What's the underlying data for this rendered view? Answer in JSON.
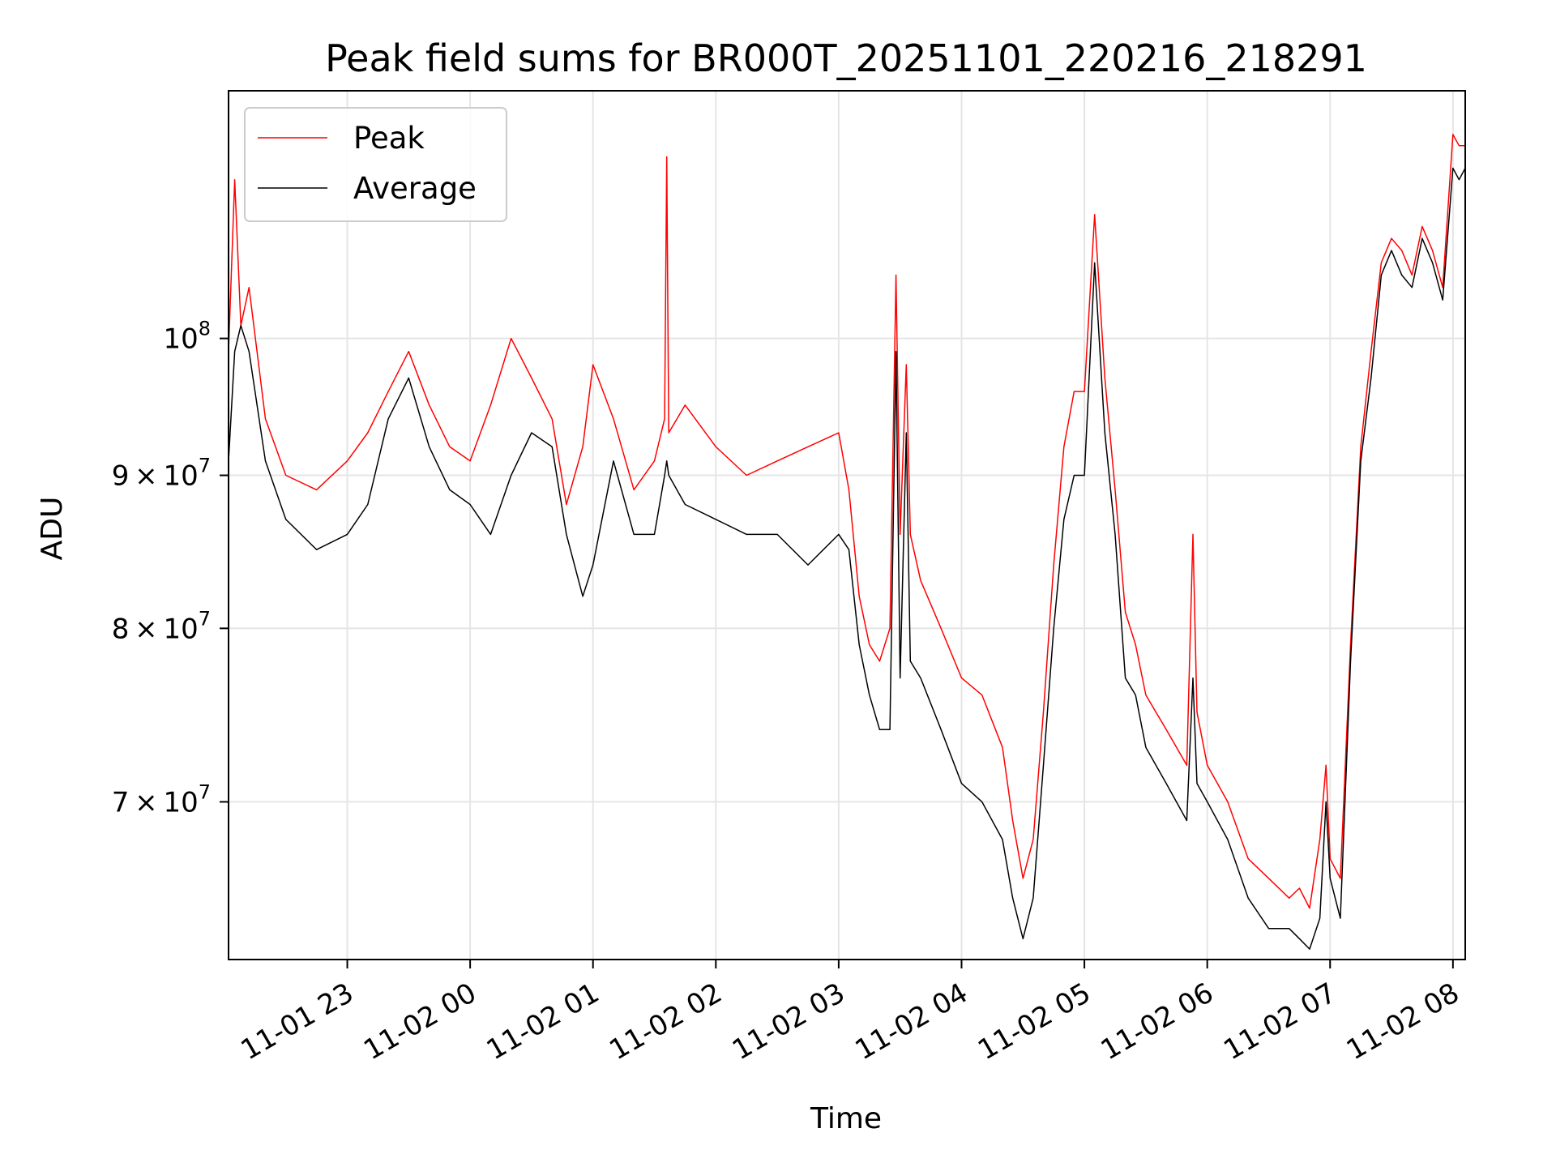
{
  "chart_data": {
    "type": "line",
    "title": "Peak field sums for BR000T_20251101_220216_218291",
    "xlabel": "Time",
    "ylabel": "ADU",
    "y_scale": "log",
    "grid": true,
    "legend_position": "top-left",
    "xlim": [
      "2025-11-01 22:02",
      "2025-11-02 08:06"
    ],
    "ylim": [
      62000000,
      121000000
    ],
    "x_ticks": [
      "11-01 23",
      "11-02 00",
      "11-02 01",
      "11-02 02",
      "11-02 03",
      "11-02 04",
      "11-02 05",
      "11-02 06",
      "11-02 07",
      "11-02 08"
    ],
    "x_tick_values": [
      "2025-11-01 23:00",
      "2025-11-02 00:00",
      "2025-11-02 01:00",
      "2025-11-02 02:00",
      "2025-11-02 03:00",
      "2025-11-02 04:00",
      "2025-11-02 05:00",
      "2025-11-02 06:00",
      "2025-11-02 07:00",
      "2025-11-02 08:00"
    ],
    "y_ticks": [
      {
        "value": 70000000,
        "mantissa": "7",
        "base": "10",
        "exp": "7",
        "full": "7 × 10^7"
      },
      {
        "value": 80000000,
        "mantissa": "8",
        "base": "10",
        "exp": "7",
        "full": "8 × 10^7"
      },
      {
        "value": 90000000,
        "mantissa": "9",
        "base": "10",
        "exp": "7",
        "full": "9 × 10^7"
      },
      {
        "value": 100000000,
        "mantissa": "",
        "base": "10",
        "exp": "8",
        "full": "10^8"
      }
    ],
    "series": [
      {
        "name": "Peak",
        "color": "#ff0000",
        "x": [
          "2025-11-01 22:02",
          "2025-11-01 22:05",
          "2025-11-01 22:08",
          "2025-11-01 22:12",
          "2025-11-01 22:20",
          "2025-11-01 22:30",
          "2025-11-01 22:45",
          "2025-11-01 23:00",
          "2025-11-01 23:10",
          "2025-11-01 23:20",
          "2025-11-01 23:30",
          "2025-11-01 23:40",
          "2025-11-01 23:50",
          "2025-11-02 00:00",
          "2025-11-02 00:10",
          "2025-11-02 00:20",
          "2025-11-02 00:30",
          "2025-11-02 00:40",
          "2025-11-02 00:47",
          "2025-11-02 00:55",
          "2025-11-02 01:00",
          "2025-11-02 01:10",
          "2025-11-02 01:20",
          "2025-11-02 01:30",
          "2025-11-02 01:35",
          "2025-11-02 01:36",
          "2025-11-02 01:37",
          "2025-11-02 01:45",
          "2025-11-02 02:00",
          "2025-11-02 02:15",
          "2025-11-02 02:30",
          "2025-11-02 02:45",
          "2025-11-02 03:00",
          "2025-11-02 03:05",
          "2025-11-02 03:10",
          "2025-11-02 03:15",
          "2025-11-02 03:20",
          "2025-11-02 03:25",
          "2025-11-02 03:28",
          "2025-11-02 03:30",
          "2025-11-02 03:33",
          "2025-11-02 03:35",
          "2025-11-02 03:40",
          "2025-11-02 03:50",
          "2025-11-02 04:00",
          "2025-11-02 04:10",
          "2025-11-02 04:20",
          "2025-11-02 04:25",
          "2025-11-02 04:30",
          "2025-11-02 04:35",
          "2025-11-02 04:40",
          "2025-11-02 04:45",
          "2025-11-02 04:50",
          "2025-11-02 04:55",
          "2025-11-02 05:00",
          "2025-11-02 05:05",
          "2025-11-02 05:10",
          "2025-11-02 05:15",
          "2025-11-02 05:20",
          "2025-11-02 05:25",
          "2025-11-02 05:30",
          "2025-11-02 05:40",
          "2025-11-02 05:50",
          "2025-11-02 05:53",
          "2025-11-02 05:55",
          "2025-11-02 06:00",
          "2025-11-02 06:10",
          "2025-11-02 06:20",
          "2025-11-02 06:30",
          "2025-11-02 06:40",
          "2025-11-02 06:45",
          "2025-11-02 06:50",
          "2025-11-02 06:55",
          "2025-11-02 06:58",
          "2025-11-02 07:00",
          "2025-11-02 07:05",
          "2025-11-02 07:10",
          "2025-11-02 07:15",
          "2025-11-02 07:20",
          "2025-11-02 07:25",
          "2025-11-02 07:30",
          "2025-11-02 07:35",
          "2025-11-02 07:40",
          "2025-11-02 07:45",
          "2025-11-02 07:50",
          "2025-11-02 07:55",
          "2025-11-02 08:00",
          "2025-11-02 08:03",
          "2025-11-02 08:06"
        ],
        "y": [
          99000000,
          113000000,
          101000000,
          104000000,
          94000000,
          90000000,
          89000000,
          91000000,
          93000000,
          96000000,
          99000000,
          95000000,
          92000000,
          91000000,
          95000000,
          100000000,
          97000000,
          94000000,
          88000000,
          92000000,
          98000000,
          94000000,
          89000000,
          91000000,
          94000000,
          115000000,
          93000000,
          95000000,
          92000000,
          90000000,
          91000000,
          92000000,
          93000000,
          89000000,
          82000000,
          79000000,
          78000000,
          80000000,
          105000000,
          86000000,
          98000000,
          86000000,
          83000000,
          80000000,
          77000000,
          76000000,
          73000000,
          69000000,
          66000000,
          68000000,
          75000000,
          84000000,
          92000000,
          96000000,
          96000000,
          110000000,
          97000000,
          89000000,
          81000000,
          79000000,
          76000000,
          74000000,
          72000000,
          86000000,
          75000000,
          72000000,
          70000000,
          67000000,
          66000000,
          65000000,
          65500000,
          64500000,
          68000000,
          72000000,
          67000000,
          66000000,
          79000000,
          92000000,
          99000000,
          106000000,
          108000000,
          107000000,
          105000000,
          109000000,
          107000000,
          104000000,
          117000000,
          116000000,
          116000000
        ]
      },
      {
        "name": "Average",
        "color": "#000000",
        "x": [
          "2025-11-01 22:02",
          "2025-11-01 22:05",
          "2025-11-01 22:08",
          "2025-11-01 22:12",
          "2025-11-01 22:20",
          "2025-11-01 22:30",
          "2025-11-01 22:45",
          "2025-11-01 23:00",
          "2025-11-01 23:10",
          "2025-11-01 23:20",
          "2025-11-01 23:30",
          "2025-11-01 23:40",
          "2025-11-01 23:50",
          "2025-11-02 00:00",
          "2025-11-02 00:10",
          "2025-11-02 00:20",
          "2025-11-02 00:30",
          "2025-11-02 00:40",
          "2025-11-02 00:47",
          "2025-11-02 00:55",
          "2025-11-02 01:00",
          "2025-11-02 01:10",
          "2025-11-02 01:20",
          "2025-11-02 01:30",
          "2025-11-02 01:35",
          "2025-11-02 01:36",
          "2025-11-02 01:37",
          "2025-11-02 01:45",
          "2025-11-02 02:00",
          "2025-11-02 02:15",
          "2025-11-02 02:30",
          "2025-11-02 02:45",
          "2025-11-02 03:00",
          "2025-11-02 03:05",
          "2025-11-02 03:10",
          "2025-11-02 03:15",
          "2025-11-02 03:20",
          "2025-11-02 03:25",
          "2025-11-02 03:28",
          "2025-11-02 03:30",
          "2025-11-02 03:33",
          "2025-11-02 03:35",
          "2025-11-02 03:40",
          "2025-11-02 03:50",
          "2025-11-02 04:00",
          "2025-11-02 04:10",
          "2025-11-02 04:20",
          "2025-11-02 04:25",
          "2025-11-02 04:30",
          "2025-11-02 04:35",
          "2025-11-02 04:40",
          "2025-11-02 04:45",
          "2025-11-02 04:50",
          "2025-11-02 04:55",
          "2025-11-02 05:00",
          "2025-11-02 05:05",
          "2025-11-02 05:10",
          "2025-11-02 05:15",
          "2025-11-02 05:20",
          "2025-11-02 05:25",
          "2025-11-02 05:30",
          "2025-11-02 05:40",
          "2025-11-02 05:50",
          "2025-11-02 05:53",
          "2025-11-02 05:55",
          "2025-11-02 06:00",
          "2025-11-02 06:10",
          "2025-11-02 06:20",
          "2025-11-02 06:30",
          "2025-11-02 06:40",
          "2025-11-02 06:45",
          "2025-11-02 06:50",
          "2025-11-02 06:55",
          "2025-11-02 06:58",
          "2025-11-02 07:00",
          "2025-11-02 07:05",
          "2025-11-02 07:10",
          "2025-11-02 07:15",
          "2025-11-02 07:20",
          "2025-11-02 07:25",
          "2025-11-02 07:30",
          "2025-11-02 07:35",
          "2025-11-02 07:40",
          "2025-11-02 07:45",
          "2025-11-02 07:50",
          "2025-11-02 07:55",
          "2025-11-02 08:00",
          "2025-11-02 08:03",
          "2025-11-02 08:06"
        ],
        "y": [
          91000000,
          99000000,
          101000000,
          99000000,
          91000000,
          87000000,
          85000000,
          86000000,
          88000000,
          94000000,
          97000000,
          92000000,
          89000000,
          88000000,
          86000000,
          90000000,
          93000000,
          92000000,
          86000000,
          82000000,
          84000000,
          91000000,
          86000000,
          86000000,
          90000000,
          91000000,
          90000000,
          88000000,
          87000000,
          86000000,
          86000000,
          84000000,
          86000000,
          85000000,
          79000000,
          76000000,
          74000000,
          74000000,
          99000000,
          77000000,
          93000000,
          78000000,
          77000000,
          74000000,
          71000000,
          70000000,
          68000000,
          65000000,
          63000000,
          65000000,
          72000000,
          80000000,
          87000000,
          90000000,
          90000000,
          106000000,
          93000000,
          86000000,
          77000000,
          76000000,
          73000000,
          71000000,
          69000000,
          77000000,
          71000000,
          70000000,
          68000000,
          65000000,
          63500000,
          63500000,
          63000000,
          62500000,
          64000000,
          70000000,
          66000000,
          64000000,
          78000000,
          91000000,
          97000000,
          105000000,
          107000000,
          105000000,
          104000000,
          108000000,
          106000000,
          103000000,
          114000000,
          113000000,
          114000000
        ]
      }
    ]
  }
}
